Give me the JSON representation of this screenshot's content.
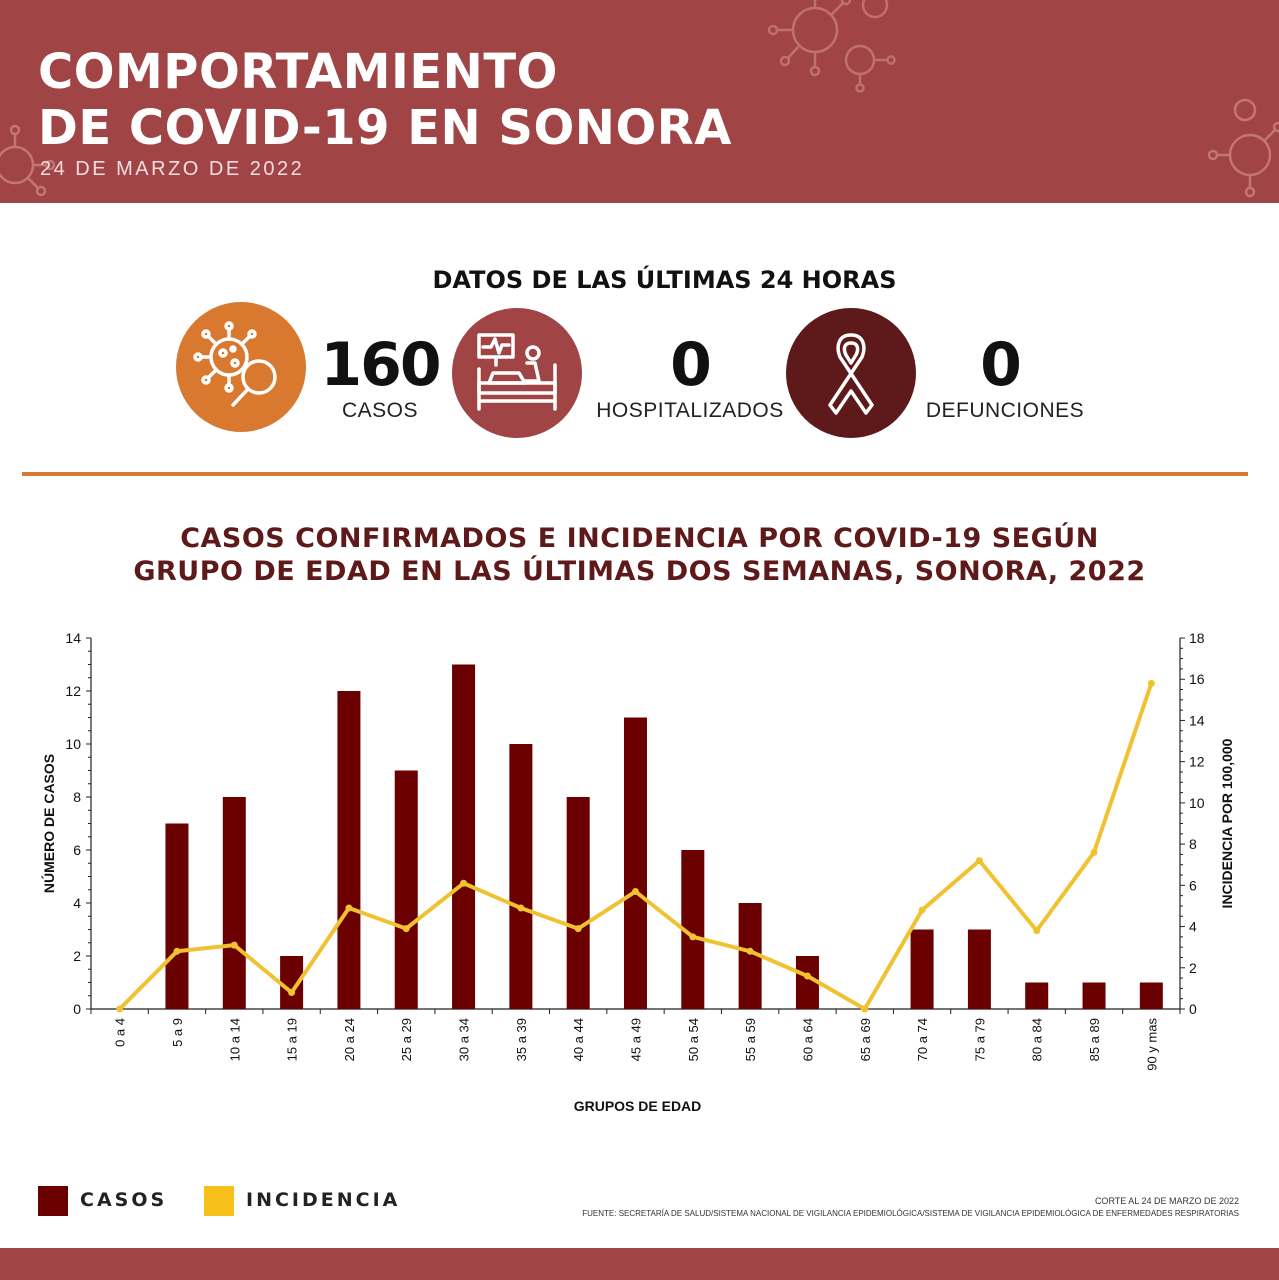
{
  "header": {
    "title_line1": "COMPORTAMIENTO",
    "title_line2": "DE COVID-19 EN SONORA",
    "date": "24 DE MARZO DE 2022"
  },
  "last24": {
    "title": "DATOS DE LAS ÚLTIMAS 24 HORAS",
    "cases": {
      "value": "160",
      "label": "CASOS",
      "icon": "virus-magnifier-icon",
      "color": "#d9782f"
    },
    "hospitalized": {
      "value": "0",
      "label": "HOSPITALIZADOS",
      "icon": "hospital-bed-icon",
      "color": "#a04446"
    },
    "deaths": {
      "value": "0",
      "label": "DEFUNCIONES",
      "icon": "ribbon-icon",
      "color": "#5e1a1a"
    }
  },
  "chart_data": {
    "type": "bar+line",
    "title_line1": "CASOS CONFIRMADOS E INCIDENCIA POR COVID-19 SEGÚN",
    "title_line2": "GRUPO DE EDAD EN LAS ÚLTIMAS DOS SEMANAS, SONORA, 2022",
    "xlabel": "GRUPOS DE EDAD",
    "ylabel_left": "NÚMERO DE CASOS",
    "ylabel_right": "INCIDENCIA POR 100,000",
    "ylim_left": [
      0,
      14
    ],
    "ylim_right": [
      0,
      18
    ],
    "yticks_left": [
      0,
      2,
      4,
      6,
      8,
      10,
      12,
      14
    ],
    "yticks_right": [
      0,
      2,
      4,
      6,
      8,
      10,
      12,
      14,
      16,
      18
    ],
    "categories": [
      "0 a 4",
      "5 a 9",
      "10 a 14",
      "15 a 19",
      "20 a 24",
      "25 a 29",
      "30 a 34",
      "35 a 39",
      "40 a 44",
      "45 a 49",
      "50 a 54",
      "55 a 59",
      "60 a 64",
      "65 a 69",
      "70 a 74",
      "75 a 79",
      "80 a 84",
      "85 a 89",
      "90 y mas"
    ],
    "series": [
      {
        "name": "CASOS",
        "type": "bar",
        "axis": "left",
        "color": "#6b0000",
        "values": [
          0,
          7,
          8,
          2,
          12,
          9,
          13,
          10,
          8,
          11,
          6,
          4,
          2,
          0,
          3,
          3,
          1,
          1,
          1
        ]
      },
      {
        "name": "INCIDENCIA",
        "type": "line",
        "axis": "right",
        "color": "#f0c232",
        "values": [
          0,
          2.8,
          3.1,
          0.8,
          4.9,
          3.9,
          6.1,
          4.9,
          3.9,
          5.7,
          3.5,
          2.8,
          1.6,
          0,
          4.8,
          7.2,
          3.8,
          7.6,
          15.8
        ]
      }
    ]
  },
  "legend": {
    "casos_label": "CASOS",
    "casos_color": "#6b0000",
    "incidencia_label": "INCIDENCIA",
    "incidencia_color": "#f6c019"
  },
  "footer": {
    "cutoff": "CORTE AL 24 DE MARZO DE 2022",
    "source": "FUENTE: SECRETARÍA DE SALUD/SISTEMA NACIONAL DE VIGILANCIA EPIDEMIOLÓGICA/SISTEMA DE VIGILANCIA EPIDEMIOLÓGICA DE ENFERMEDADES RESPIRATORIAS"
  }
}
